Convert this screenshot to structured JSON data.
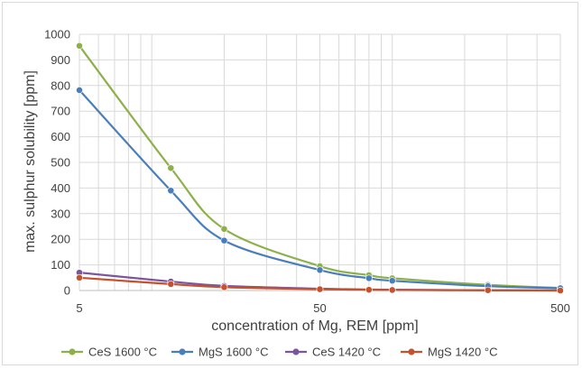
{
  "chart_data": {
    "type": "line",
    "x_scale": "log",
    "xlabel": "concentration of Mg, REM [ppm]",
    "ylabel": "max. sulphur solubility [ppm]",
    "xlim": [
      5,
      500
    ],
    "ylim": [
      0,
      1000
    ],
    "x_ticks": [
      "5",
      "50",
      "500"
    ],
    "y_ticks": [
      "0",
      "100",
      "200",
      "300",
      "400",
      "500",
      "600",
      "700",
      "800",
      "900",
      "1000"
    ],
    "grid": true,
    "legend_position": "bottom",
    "series": [
      {
        "name": "CeS 1600 °C",
        "color": "#8db04a",
        "points": [
          [
            5,
            955
          ],
          [
            12,
            478
          ],
          [
            20,
            240
          ],
          [
            50,
            95
          ],
          [
            80,
            60
          ],
          [
            100,
            48
          ],
          [
            250,
            22
          ],
          [
            500,
            10
          ]
        ]
      },
      {
        "name": "MgS 1600 °C",
        "color": "#4a7ebb",
        "points": [
          [
            5,
            782
          ],
          [
            12,
            390
          ],
          [
            20,
            195
          ],
          [
            50,
            80
          ],
          [
            80,
            48
          ],
          [
            100,
            38
          ],
          [
            250,
            17
          ],
          [
            500,
            9
          ]
        ]
      },
      {
        "name": "CeS 1420 °C",
        "color": "#7b56a0",
        "points": [
          [
            5,
            70
          ],
          [
            12,
            35
          ],
          [
            20,
            18
          ],
          [
            50,
            7
          ],
          [
            80,
            4
          ],
          [
            100,
            3
          ],
          [
            250,
            1
          ],
          [
            500,
            0
          ]
        ]
      },
      {
        "name": "MgS 1420 °C",
        "color": "#c4522e",
        "points": [
          [
            5,
            50
          ],
          [
            12,
            25
          ],
          [
            20,
            13
          ],
          [
            50,
            5
          ],
          [
            80,
            3
          ],
          [
            100,
            2
          ],
          [
            250,
            1
          ],
          [
            500,
            0
          ]
        ]
      }
    ]
  }
}
